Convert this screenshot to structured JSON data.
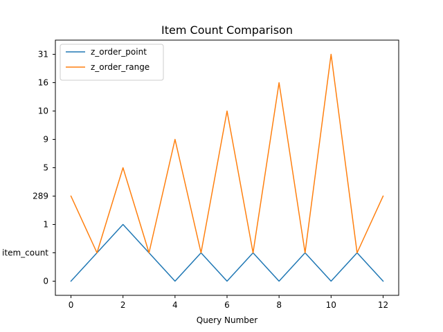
{
  "chart_data": {
    "type": "line",
    "title": "Item Count Comparison",
    "xlabel": "Query Number",
    "ylabel": "",
    "x": [
      0,
      1,
      2,
      3,
      4,
      5,
      6,
      7,
      8,
      9,
      10,
      11,
      12
    ],
    "xticks": [
      "0",
      "2",
      "4",
      "6",
      "8",
      "10",
      "12"
    ],
    "xlim": [
      -0.6,
      12.6
    ],
    "y_axis_kind": "categorical",
    "y_categories": [
      "0",
      "item_count",
      "1",
      "289",
      "5",
      "9",
      "10",
      "16",
      "31"
    ],
    "series": [
      {
        "name": "z_order_point",
        "color": "#1f77b4",
        "values": [
          "0",
          "item_count",
          "1",
          "item_count",
          "0",
          "item_count",
          "0",
          "item_count",
          "0",
          "item_count",
          "0",
          "item_count",
          "0"
        ]
      },
      {
        "name": "z_order_range",
        "color": "#ff7f0e",
        "values": [
          "289",
          "item_count",
          "5",
          "item_count",
          "9",
          "item_count",
          "10",
          "item_count",
          "16",
          "item_count",
          "31",
          "item_count",
          "289"
        ]
      }
    ],
    "grid": false,
    "legend": "top-left"
  }
}
